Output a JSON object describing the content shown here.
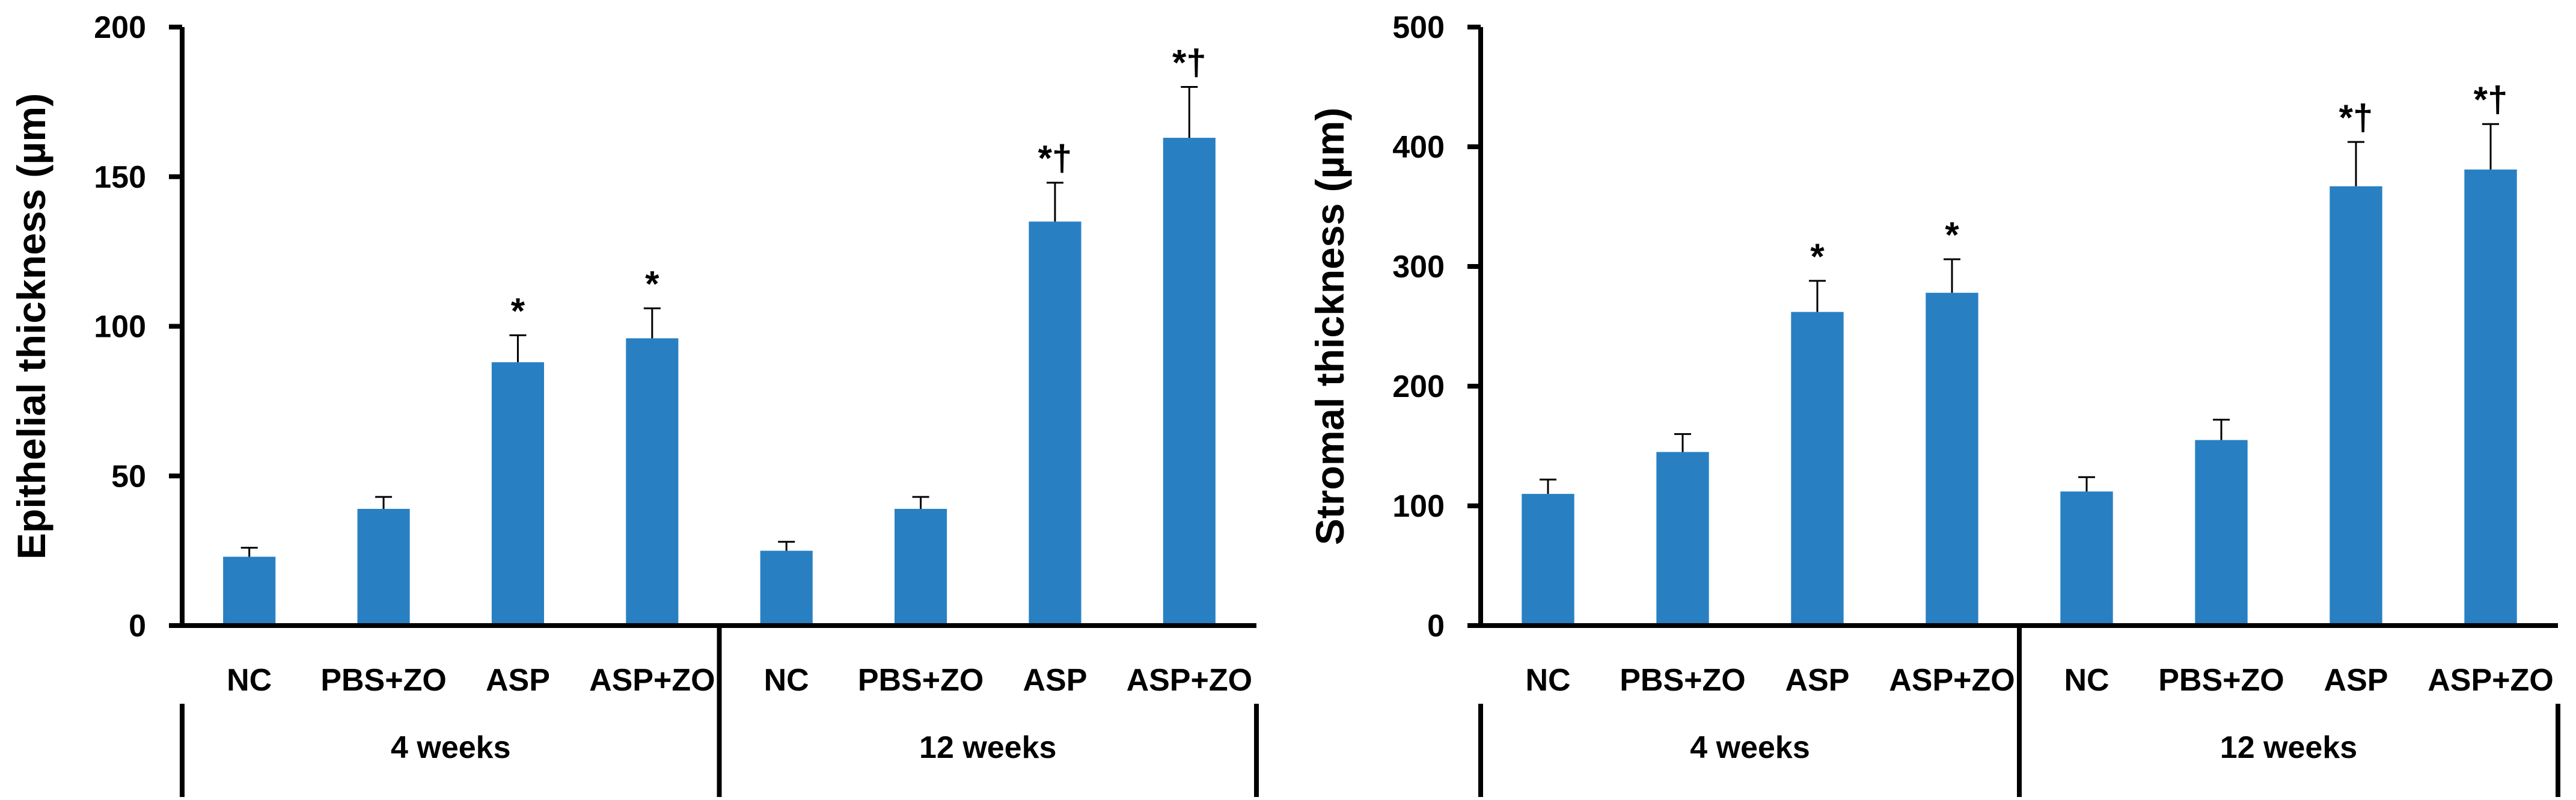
{
  "chart_data": [
    {
      "type": "bar",
      "ylabel": "Epithelial thickness (µm)",
      "xlabel": "",
      "ylim": [
        0,
        200
      ],
      "yticks": [
        "0",
        "50",
        "100",
        "150",
        "200"
      ],
      "categories": [
        "NC",
        "PBS+ZO",
        "ASP",
        "ASP+ZO",
        "NC",
        "PBS+ZO",
        "ASP",
        "ASP+ZO"
      ],
      "groups": [
        {
          "label": "4 weeks",
          "span": 4
        },
        {
          "label": "12 weeks",
          "span": 4
        }
      ],
      "values": [
        23,
        39,
        88,
        96,
        25,
        39,
        135,
        163
      ],
      "errors": [
        3,
        4,
        9,
        10,
        3,
        4,
        13,
        17
      ],
      "annotations": [
        "",
        "",
        "*",
        "*",
        "",
        "",
        "*†",
        "*†"
      ],
      "bar_color": "#2880c2",
      "grid": false
    },
    {
      "type": "bar",
      "ylabel": "Stromal thickness (µm)",
      "xlabel": "",
      "ylim": [
        0,
        500
      ],
      "yticks": [
        "0",
        "100",
        "200",
        "300",
        "400",
        "500"
      ],
      "categories": [
        "NC",
        "PBS+ZO",
        "ASP",
        "ASP+ZO",
        "NC",
        "PBS+ZO",
        "ASP",
        "ASP+ZO"
      ],
      "groups": [
        {
          "label": "4 weeks",
          "span": 4
        },
        {
          "label": "12 weeks",
          "span": 4
        }
      ],
      "values": [
        110,
        145,
        262,
        278,
        112,
        155,
        367,
        381
      ],
      "errors": [
        12,
        15,
        26,
        28,
        12,
        17,
        37,
        38
      ],
      "annotations": [
        "",
        "",
        "*",
        "*",
        "",
        "",
        "*†",
        "*†"
      ],
      "bar_color": "#2880c2",
      "grid": false
    }
  ]
}
